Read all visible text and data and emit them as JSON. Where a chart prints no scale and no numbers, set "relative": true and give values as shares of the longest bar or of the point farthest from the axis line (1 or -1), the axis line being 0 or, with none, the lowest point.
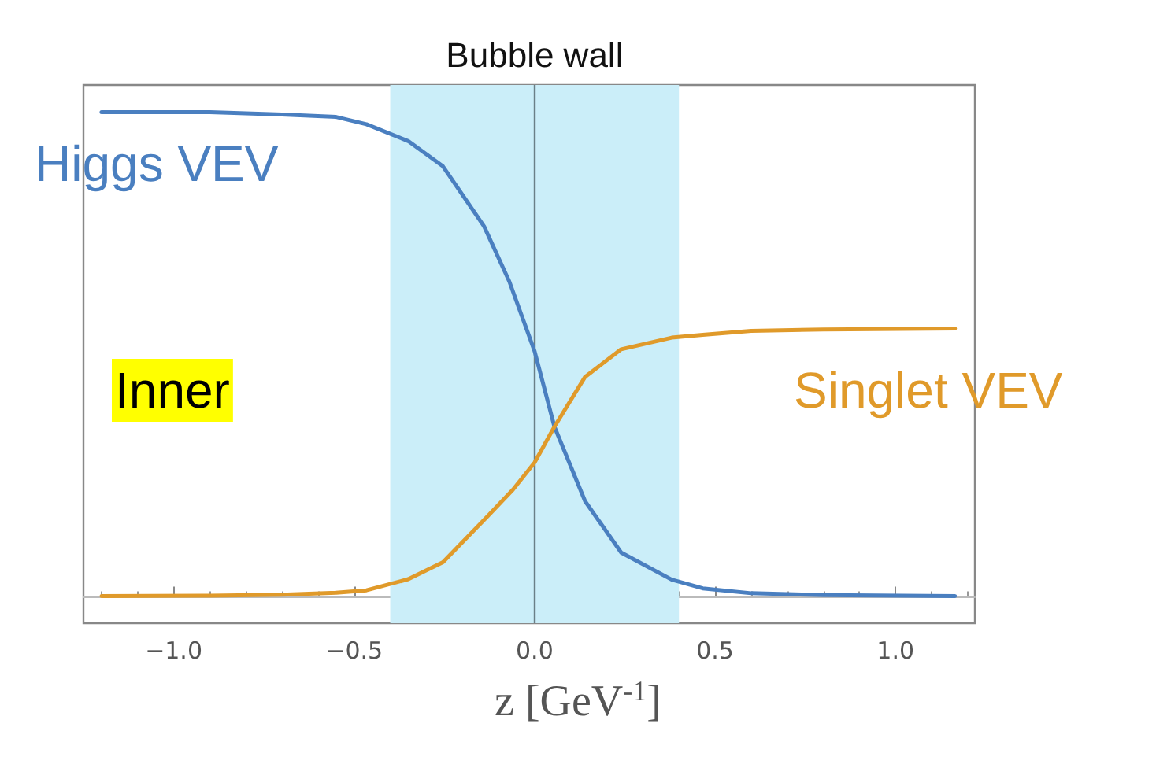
{
  "chart_data": {
    "type": "line",
    "relative": true,
    "xlabel": "z [GeV$^{-1}$]",
    "xlim": [
      -1.25,
      1.22
    ],
    "xticks": [
      {
        "value": -1,
        "label": "−1.0"
      },
      {
        "value": -0.5,
        "label": "−0.5"
      },
      {
        "value": 0,
        "label": "0.0"
      },
      {
        "value": 0.5,
        "label": "0.5"
      },
      {
        "value": 1,
        "label": "1.0"
      }
    ],
    "series": [
      {
        "name": "Higgs VEV",
        "color": "#4a7fc0",
        "x": [
          -1.2,
          -0.9,
          -0.7,
          -0.55,
          -0.466,
          -0.35,
          -0.254,
          -0.14,
          -0.07,
          0,
          0.055,
          0.14,
          0.24,
          0.38,
          0.466,
          0.6,
          0.8,
          1.165
        ],
        "values": [
          1,
          1,
          0.995,
          0.99,
          0.975,
          0.94,
          0.888,
          0.764,
          0.65,
          0.506,
          0.35,
          0.196,
          0.09,
          0.034,
          0.016,
          0.006,
          0.002,
          0
        ]
      },
      {
        "name": "Singlet VEV",
        "color": "#e09a2a",
        "x": [
          -1.2,
          -0.9,
          -0.7,
          -0.55,
          -0.466,
          -0.35,
          -0.254,
          -0.13,
          -0.06,
          0,
          0.055,
          0.14,
          0.24,
          0.38,
          0.466,
          0.6,
          0.8,
          1.165
        ],
        "values": [
          0,
          0.001,
          0.003,
          0.007,
          0.012,
          0.035,
          0.07,
          0.165,
          0.22,
          0.276,
          0.35,
          0.453,
          0.51,
          0.534,
          0.54,
          0.548,
          0.551,
          0.553
        ]
      }
    ],
    "bands": [
      {
        "axis": "x",
        "from": -0.4,
        "to": 0.4,
        "label": "Bubble wall",
        "color": "#cbeef9"
      }
    ],
    "ref_lines": [
      {
        "axis": "x",
        "value": 0,
        "color": "#6a7f87"
      }
    ],
    "annotations": [
      "Inner"
    ],
    "grid": false,
    "legend": false,
    "line_style": "solid",
    "marker": "none"
  }
}
